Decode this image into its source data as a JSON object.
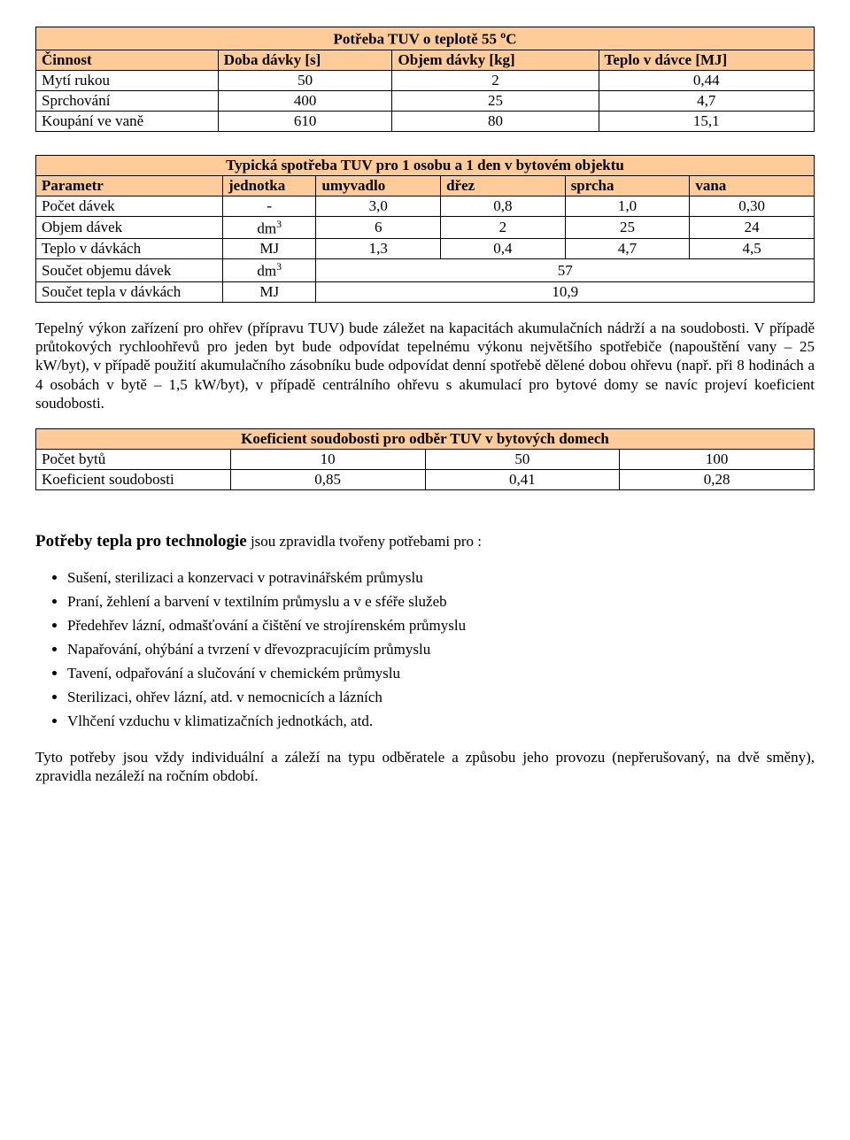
{
  "table1": {
    "title_html": "Potřeba TUV o teplotě 55 <sup>o</sup>C",
    "headers": [
      "Činnost",
      "Doba dávky [s]",
      "Objem dávky [kg]",
      "Teplo v dávce [MJ]"
    ],
    "rows": [
      [
        "Mytí rukou",
        "50",
        "2",
        "0,44"
      ],
      [
        "Sprchování",
        "400",
        "25",
        "4,7"
      ],
      [
        "Koupání ve vaně",
        "610",
        "80",
        "15,1"
      ]
    ]
  },
  "table2": {
    "title": "Typická spotřeba TUV pro 1 osobu a 1 den v bytovém objektu",
    "headers": [
      "Parametr",
      "jednotka",
      "umyvadlo",
      "dřez",
      "sprcha",
      "vana"
    ],
    "rows": [
      [
        "Počet dávek",
        "-",
        "3,0",
        "0,8",
        "1,0",
        "0,30"
      ],
      [
        "Objem dávek",
        {
          "html": "dm<sup>3</sup>"
        },
        "6",
        "2",
        "25",
        "24"
      ],
      [
        "Teplo v dávkách",
        "MJ",
        "1,3",
        "0,4",
        "4,7",
        "4,5"
      ]
    ],
    "sumRows": [
      [
        "Součet objemu dávek",
        {
          "html": "dm<sup>3</sup>"
        },
        "57"
      ],
      [
        "Součet tepla v dávkách",
        "MJ",
        "10,9"
      ]
    ]
  },
  "para1": "Tepelný výkon zařízení pro ohřev (přípravu TUV) bude záležet na kapacitách akumulačních nádrží a na soudobosti. V případě průtokových rychloohřevů pro jeden byt bude odpovídat tepelnému výkonu největšího spotřebiče (napouštění vany – 25 kW/byt), v případě použití akumulačního zásobníku bude odpovídat denní spotřebě dělené dobou ohřevu (např. při 8 hodinách a 4 osobách v bytě – 1,5 kW/byt), v případě centrálního ohřevu s akumulací pro bytové domy se navíc projeví koeficient soudobosti.",
  "table3": {
    "title": "Koeficient soudobosti pro odběr TUV v bytových domech",
    "rows": [
      [
        "Počet bytů",
        "10",
        "50",
        "100"
      ],
      [
        "Koeficient soudobosti",
        "0,85",
        "0,41",
        "0,28"
      ]
    ]
  },
  "section2": {
    "title": "Potřeby tepla pro technologie",
    "intro": " jsou zpravidla tvořeny potřebami pro :",
    "bullets": [
      "Sušení, sterilizaci a konzervaci v potravinářském průmyslu",
      "Praní, žehlení a barvení v textilním průmyslu a v e sféře služeb",
      "Předehřev lázní, odmašťování a čištění ve strojírenském průmyslu",
      "Napařování, ohýbání a tvrzení v dřevozpracujícím průmyslu",
      "Tavení, odpařování a slučování v chemickém průmyslu",
      "Sterilizaci, ohřev lázní, atd. v nemocnicích a lázních",
      "Vlhčení vzduchu v klimatizačních jednotkách, atd."
    ],
    "outro": "Tyto potřeby jsou vždy individuální a záleží na typu odběratele a způsobu jeho provozu (nepřerušovaný, na dvě směny), zpravidla nezáleží na ročním období."
  },
  "colors": {
    "header_bg": "#ffcc99",
    "border": "#000000",
    "text": "#000000"
  },
  "layout": {
    "t1_cols_pct": [
      33,
      22.3,
      22.3,
      22.3
    ],
    "t2_cols_pct": [
      24,
      12,
      16,
      16,
      16,
      16
    ],
    "t3_cols_pct": [
      25,
      25,
      25,
      25
    ]
  }
}
